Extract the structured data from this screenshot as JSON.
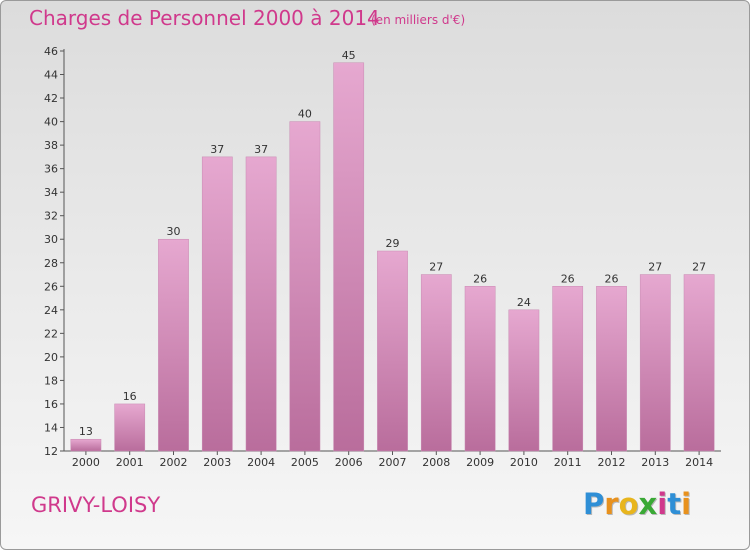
{
  "title": "Charges de Personnel 2000 à 2014",
  "subtitle": "(en milliers d'€)",
  "commune": "GRIVY-LOISY",
  "logo": {
    "letters": [
      "P",
      "r",
      "o",
      "x",
      "i",
      "t",
      "i"
    ],
    "colors": [
      "#2f8fd6",
      "#e8911d",
      "#e8b51d",
      "#3aa935",
      "#d0398c",
      "#2f8fd6",
      "#e8911d"
    ]
  },
  "colors": {
    "accent": "#d0398c",
    "bar_top": "#e6a8d0",
    "bar_bottom": "#b96d9c"
  },
  "chart_data": {
    "type": "bar",
    "categories": [
      "2000",
      "2001",
      "2002",
      "2003",
      "2004",
      "2005",
      "2006",
      "2007",
      "2008",
      "2009",
      "2010",
      "2011",
      "2012",
      "2013",
      "2014"
    ],
    "values": [
      13,
      16,
      30,
      37,
      37,
      40,
      45,
      29,
      27,
      26,
      24,
      26,
      26,
      27,
      27
    ],
    "ylim": [
      12,
      46
    ],
    "yticks": [
      12,
      14,
      16,
      18,
      20,
      22,
      24,
      26,
      28,
      30,
      32,
      34,
      36,
      38,
      40,
      42,
      44,
      46
    ],
    "grid": false,
    "data_labels": true
  }
}
